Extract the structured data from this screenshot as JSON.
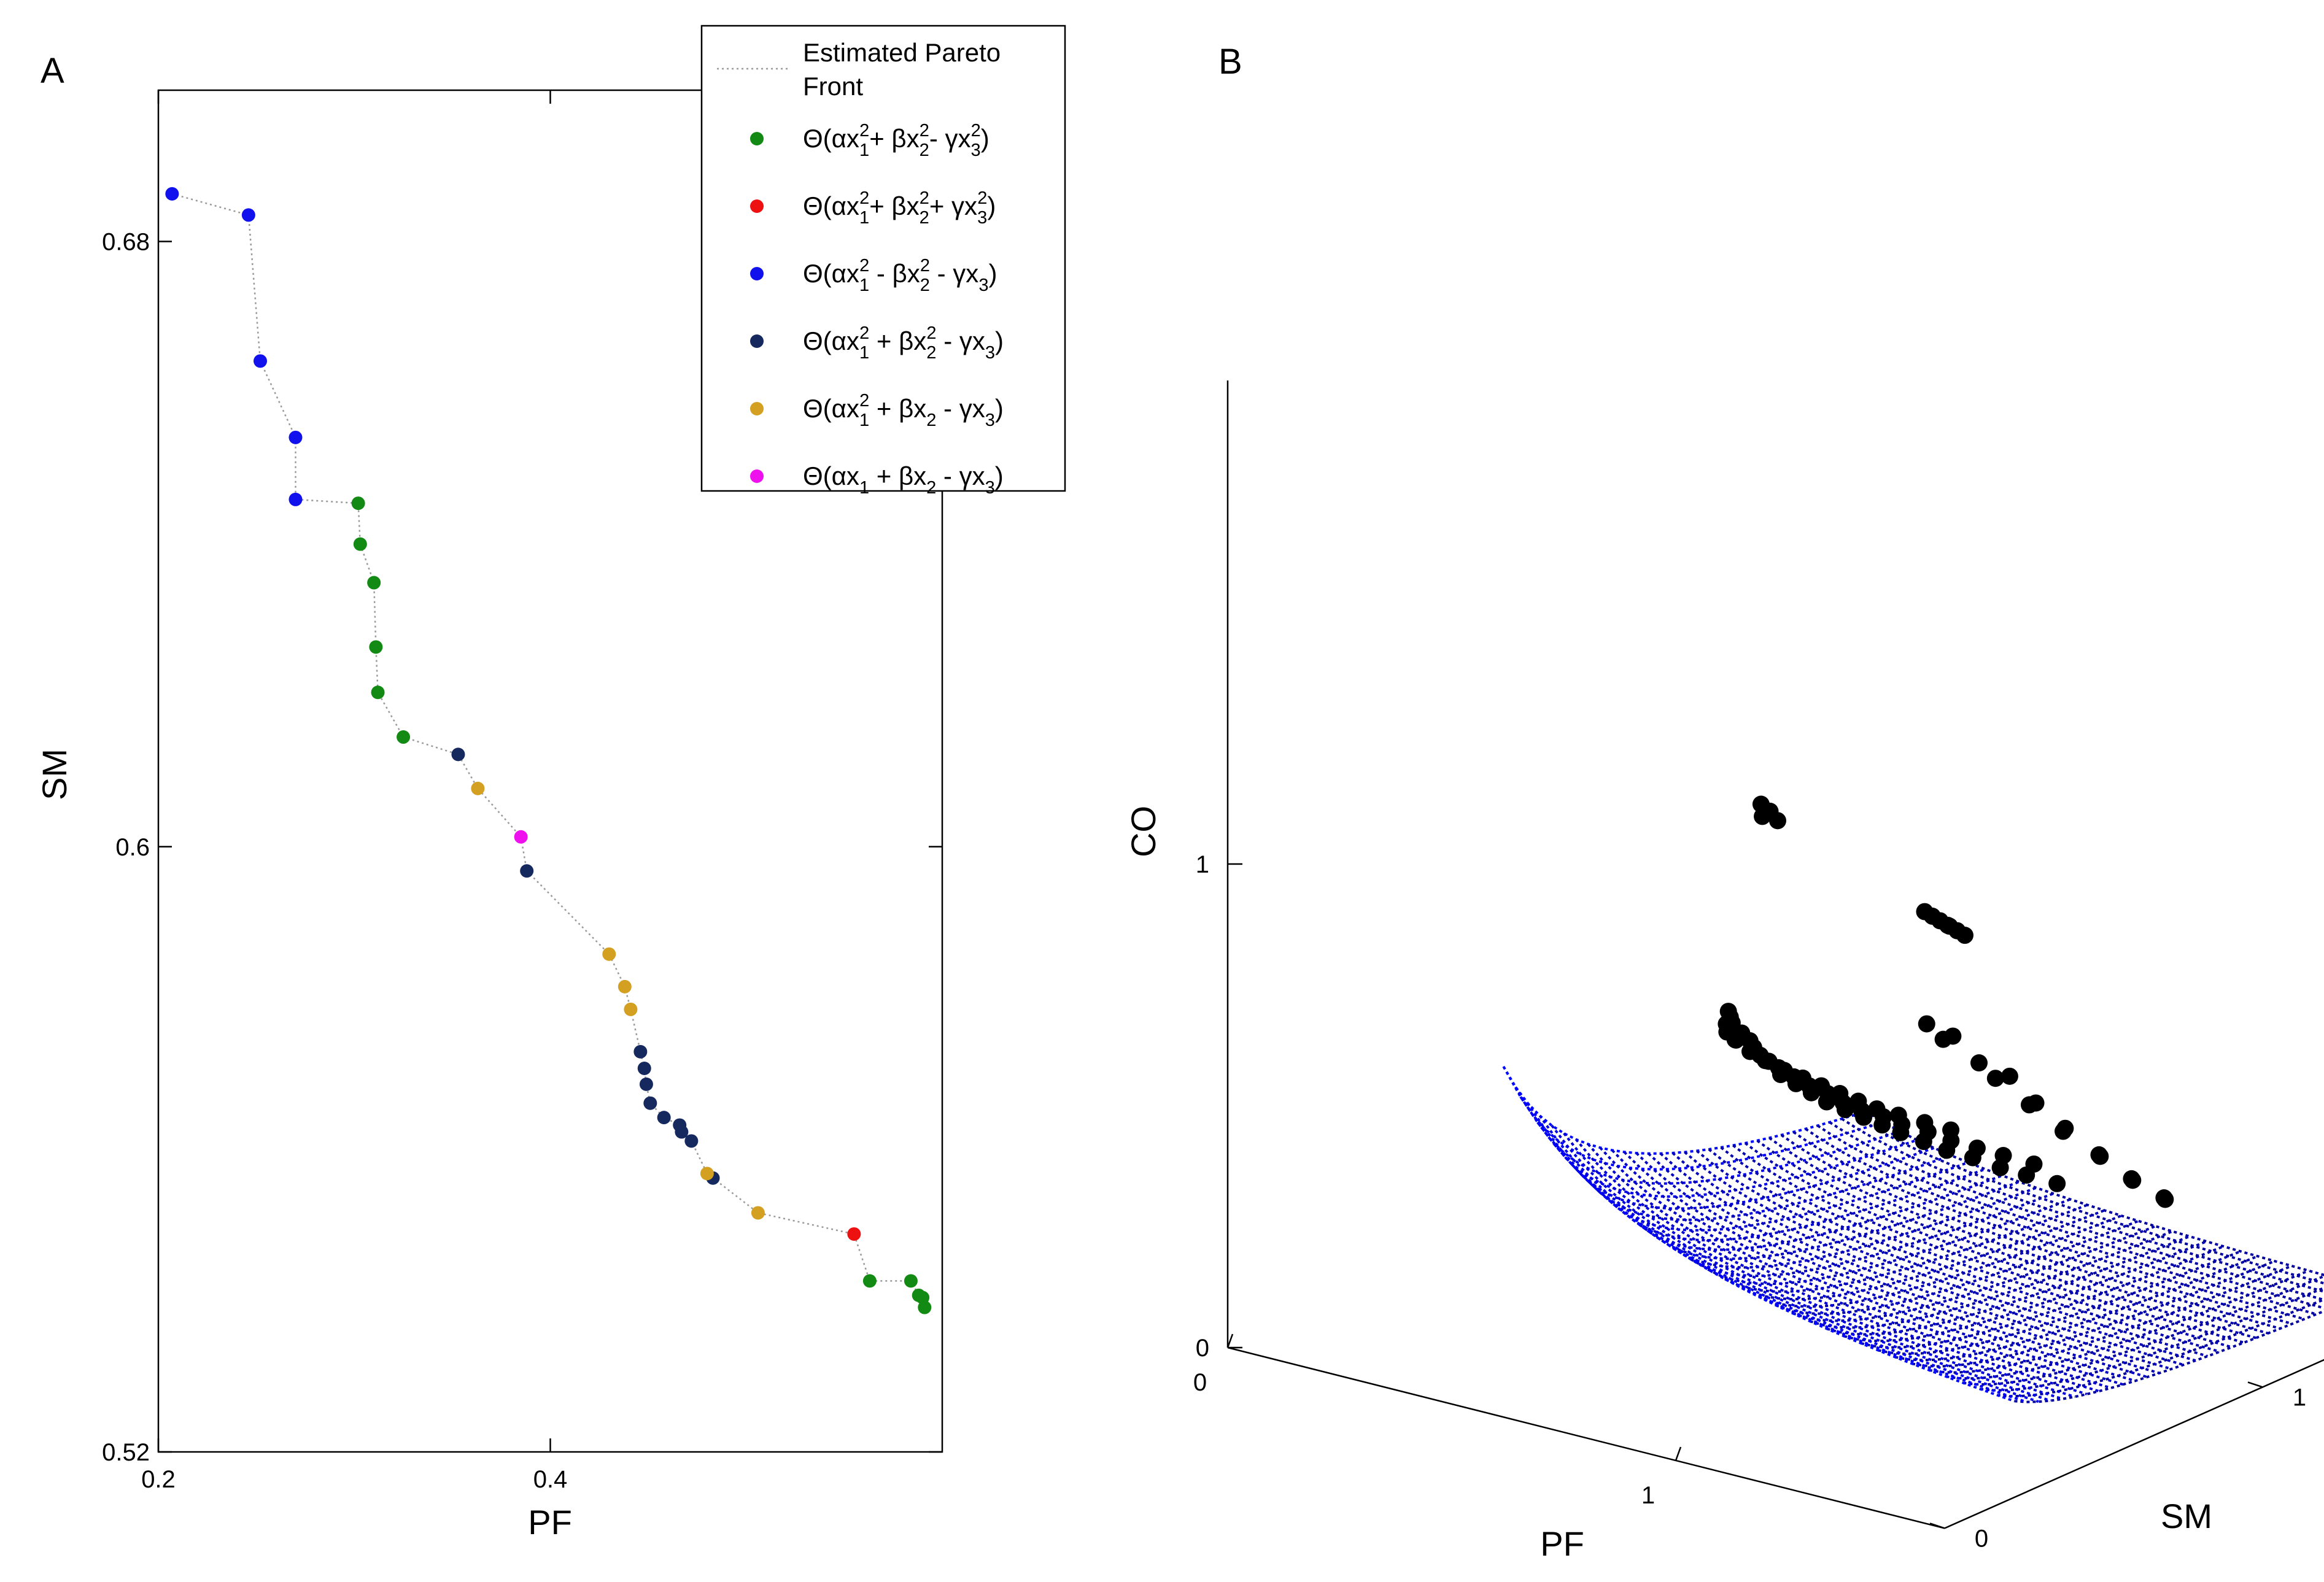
{
  "chart_data": [
    {
      "panel": "A",
      "type": "scatter",
      "xlabel": "PF",
      "ylabel": "SM",
      "xlim": [
        0.2,
        0.6
      ],
      "ylim": [
        0.52,
        0.7
      ],
      "x_ticks": [
        {
          "value": 0.2,
          "label": "0.2"
        },
        {
          "value": 0.4,
          "label": "0.4"
        }
      ],
      "y_ticks": [
        {
          "value": 0.52,
          "label": "0.52"
        },
        {
          "value": 0.6,
          "label": "0.6"
        },
        {
          "value": 0.68,
          "label": "0.68"
        }
      ],
      "pareto_front": {
        "name": "Estimated Pareto Front",
        "legend_lines": [
          "Estimated Pareto",
          "Front"
        ],
        "color": "#9a9a9a",
        "x": [
          0.207,
          0.246,
          0.252,
          0.27,
          0.27,
          0.302,
          0.303,
          0.31,
          0.311,
          0.312,
          0.325,
          0.353,
          0.363,
          0.385,
          0.388,
          0.43,
          0.438,
          0.441,
          0.446,
          0.448,
          0.449,
          0.451,
          0.458,
          0.466,
          0.467,
          0.472,
          0.48,
          0.483,
          0.506,
          0.555,
          0.563,
          0.584,
          0.588,
          0.59,
          0.591
        ],
        "y": [
          0.6863,
          0.6835,
          0.6642,
          0.6541,
          0.6459,
          0.6454,
          0.64,
          0.6349,
          0.6264,
          0.6204,
          0.6145,
          0.6122,
          0.6077,
          0.6013,
          0.5968,
          0.5858,
          0.5815,
          0.5785,
          0.5729,
          0.5707,
          0.5686,
          0.5661,
          0.5642,
          0.5632,
          0.5623,
          0.5611,
          0.5568,
          0.5562,
          0.5516,
          0.5488,
          0.5426,
          0.5426,
          0.5407,
          0.5404,
          0.5391
        ]
      },
      "series": [
        {
          "name": "Θ(αx₁²+ βx₂²- γx₃²)",
          "color": "#138a13",
          "points": [
            [
              0.302,
              0.6454
            ],
            [
              0.303,
              0.64
            ],
            [
              0.31,
              0.6349
            ],
            [
              0.311,
              0.6264
            ],
            [
              0.312,
              0.6204
            ],
            [
              0.325,
              0.6145
            ],
            [
              0.563,
              0.5426
            ],
            [
              0.584,
              0.5426
            ],
            [
              0.588,
              0.5407
            ],
            [
              0.59,
              0.5404
            ],
            [
              0.591,
              0.5391
            ]
          ]
        },
        {
          "name": "Θ(αx₁²+ βx₂²+ γx₃²)",
          "color": "#ee1111",
          "points": [
            [
              0.555,
              0.5488
            ]
          ]
        },
        {
          "name": "Θ(αx₁² - βx₂² - γx₃)",
          "color": "#1111ee",
          "points": [
            [
              0.207,
              0.6863
            ],
            [
              0.246,
              0.6835
            ],
            [
              0.252,
              0.6642
            ],
            [
              0.27,
              0.6541
            ],
            [
              0.27,
              0.6459
            ]
          ]
        },
        {
          "name": "Θ(αx₁² + βx₂² - γx₃)",
          "color": "#15295e",
          "points": [
            [
              0.353,
              0.6122
            ],
            [
              0.388,
              0.5968
            ],
            [
              0.446,
              0.5729
            ],
            [
              0.448,
              0.5707
            ],
            [
              0.449,
              0.5686
            ],
            [
              0.451,
              0.5661
            ],
            [
              0.458,
              0.5642
            ],
            [
              0.466,
              0.5632
            ],
            [
              0.467,
              0.5623
            ],
            [
              0.472,
              0.5611
            ],
            [
              0.483,
              0.5562
            ]
          ]
        },
        {
          "name": "Θ(αx₁² + βx₂ - γx₃)",
          "color": "#d4a022",
          "points": [
            [
              0.363,
              0.6077
            ],
            [
              0.43,
              0.5858
            ],
            [
              0.438,
              0.5815
            ],
            [
              0.441,
              0.5785
            ],
            [
              0.48,
              0.5568
            ],
            [
              0.506,
              0.5516
            ]
          ]
        },
        {
          "name": "Θ(αx₁ + βx₂ - γx₃)",
          "color": "#ee11ee",
          "points": [
            [
              0.385,
              0.6013
            ]
          ]
        }
      ],
      "legend": {
        "placement": "top-right",
        "entries": [
          {
            "parts": [
              "Θ(αx",
              "1",
              "2",
              "+ βx",
              "2",
              "2",
              "- γx",
              "3",
              "2",
              ")"
            ],
            "color": "#138a13"
          },
          {
            "parts": [
              "Θ(αx",
              "1",
              "2",
              "+ βx",
              "2",
              "2",
              "+ γx",
              "3",
              "2",
              ")"
            ],
            "color": "#ee1111"
          },
          {
            "parts": [
              "Θ(αx",
              "1",
              "2",
              " - βx",
              "2",
              "2",
              " - γx",
              "3",
              "",
              ")"
            ],
            "color": "#1111ee"
          },
          {
            "parts": [
              "Θ(αx",
              "1",
              "2",
              " + βx",
              "2",
              "2",
              " - γx",
              "3",
              "",
              ")"
            ],
            "color": "#15295e"
          },
          {
            "parts": [
              "Θ(αx",
              "1",
              "2",
              " + βx",
              "2",
              "",
              " - γx",
              "3",
              "",
              ")"
            ],
            "color": "#d4a022"
          },
          {
            "parts": [
              "Θ(αx",
              "1",
              "",
              " + βx",
              "2",
              "",
              " - γx",
              "3",
              "",
              ")"
            ],
            "color": "#ee11ee"
          }
        ]
      }
    },
    {
      "panel": "B",
      "type": "surface3d",
      "xlabel": "PF",
      "ylabel": "SM",
      "zlabel": "CO",
      "pf_ticks": [
        {
          "value": 0,
          "label": "0"
        },
        {
          "value": 1,
          "label": "1"
        }
      ],
      "sm_ticks": [
        {
          "value": 0,
          "label": "0"
        },
        {
          "value": 1,
          "label": "1"
        }
      ],
      "co_ticks": [
        {
          "value": 0,
          "label": "0"
        },
        {
          "value": 1,
          "label": "1"
        }
      ],
      "surface": "CO = 0.22·(0.6/PF)·(0.55/SM), PF,SM ∈ [0.36, 1.5], colormap jet, dotted mesh",
      "points_color": "#000000",
      "points": [
        [
          0.72,
          0.56,
          0.7
        ],
        [
          0.71,
          0.58,
          0.68
        ],
        [
          0.7,
          0.6,
          0.66
        ],
        [
          0.68,
          0.61,
          0.65
        ],
        [
          0.73,
          0.57,
          0.64
        ],
        [
          0.7,
          0.63,
          0.63
        ],
        [
          0.66,
          0.64,
          0.62
        ],
        [
          0.74,
          0.6,
          0.61
        ],
        [
          0.69,
          0.67,
          0.6
        ],
        [
          0.65,
          0.68,
          0.59
        ],
        [
          0.76,
          0.62,
          0.59
        ],
        [
          0.72,
          0.66,
          0.58
        ],
        [
          0.67,
          0.71,
          0.57
        ],
        [
          0.78,
          0.64,
          0.56
        ],
        [
          0.74,
          0.69,
          0.55
        ],
        [
          0.69,
          0.73,
          0.54
        ],
        [
          0.8,
          0.66,
          0.54
        ],
        [
          0.76,
          0.71,
          0.53
        ],
        [
          0.71,
          0.75,
          0.52
        ],
        [
          0.82,
          0.68,
          0.52
        ],
        [
          0.78,
          0.73,
          0.51
        ],
        [
          0.73,
          0.78,
          0.5
        ],
        [
          0.84,
          0.7,
          0.5
        ],
        [
          0.8,
          0.76,
          0.49
        ],
        [
          0.75,
          0.81,
          0.48
        ],
        [
          0.86,
          0.73,
          0.48
        ],
        [
          0.82,
          0.78,
          0.47
        ],
        [
          0.77,
          0.84,
          0.46
        ],
        [
          0.88,
          0.76,
          0.46
        ],
        [
          0.84,
          0.81,
          0.45
        ],
        [
          0.79,
          0.87,
          0.44
        ],
        [
          0.9,
          0.79,
          0.44
        ],
        [
          0.86,
          0.85,
          0.43
        ],
        [
          0.81,
          0.9,
          0.42
        ],
        [
          0.92,
          0.82,
          0.42
        ],
        [
          0.88,
          0.88,
          0.41
        ],
        [
          0.83,
          0.94,
          0.4
        ],
        [
          0.95,
          0.85,
          0.4
        ],
        [
          0.91,
          0.92,
          0.39
        ],
        [
          0.86,
          0.98,
          0.38
        ],
        [
          0.98,
          0.88,
          0.38
        ],
        [
          0.94,
          0.95,
          0.37
        ],
        [
          0.89,
          1.02,
          0.36
        ],
        [
          1.01,
          0.92,
          0.36
        ],
        [
          0.97,
          0.99,
          0.35
        ],
        [
          1.05,
          0.95,
          0.34
        ],
        [
          1.0,
          1.03,
          0.33
        ],
        [
          1.08,
          0.99,
          0.32
        ],
        [
          1.04,
          1.07,
          0.31
        ],
        [
          1.12,
          1.03,
          0.3
        ],
        [
          1.12,
          0.62,
          0.75
        ],
        [
          1.15,
          0.66,
          0.72
        ],
        [
          1.1,
          0.7,
          0.69
        ],
        [
          1.18,
          0.7,
          0.66
        ],
        [
          1.22,
          0.74,
          0.63
        ],
        [
          1.16,
          0.78,
          0.6
        ],
        [
          1.25,
          0.78,
          0.57
        ],
        [
          1.2,
          0.83,
          0.54
        ],
        [
          1.28,
          0.83,
          0.51
        ],
        [
          1.24,
          0.88,
          0.48
        ],
        [
          1.32,
          0.88,
          0.45
        ],
        [
          1.28,
          0.94,
          0.42
        ],
        [
          1.35,
          0.94,
          0.39
        ],
        [
          1.31,
          1.0,
          0.36
        ],
        [
          1.38,
          1.0,
          0.34
        ],
        [
          1.34,
          1.06,
          0.31
        ],
        [
          0.8,
          0.55,
          1.15
        ],
        [
          0.81,
          0.54,
          1.13
        ],
        [
          0.82,
          0.55,
          1.14
        ],
        [
          0.83,
          0.56,
          1.12
        ],
        [
          1.3,
          0.36,
          1.1
        ],
        [
          1.31,
          0.37,
          1.09
        ],
        [
          1.32,
          0.38,
          1.08
        ],
        [
          1.33,
          0.39,
          1.07
        ],
        [
          1.32,
          0.41,
          1.06
        ],
        [
          1.33,
          0.42,
          1.05
        ],
        [
          1.34,
          0.43,
          1.04
        ]
      ]
    }
  ]
}
